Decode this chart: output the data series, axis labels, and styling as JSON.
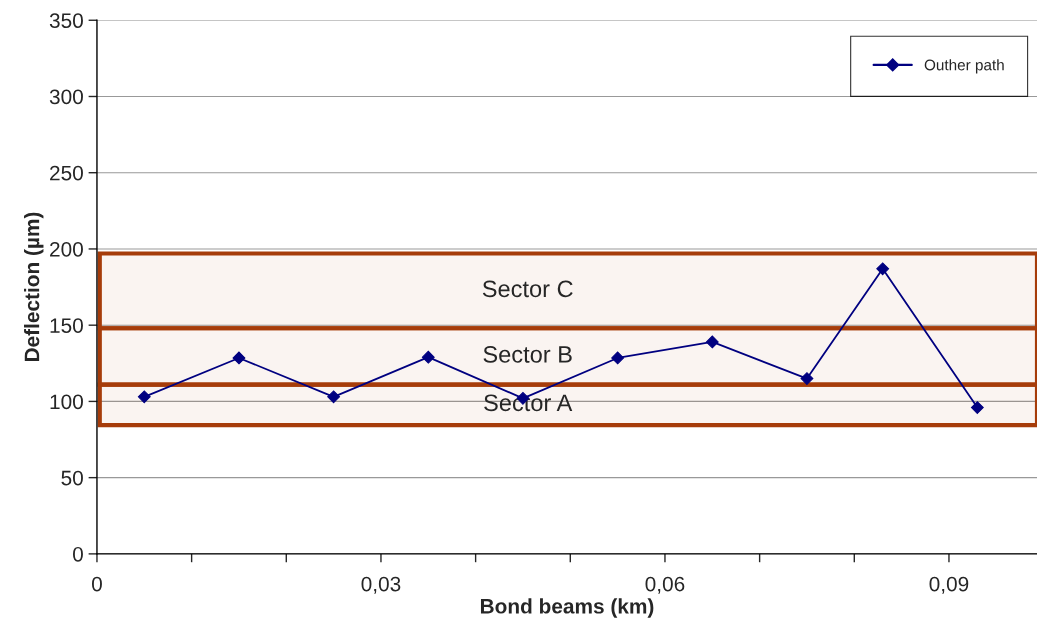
{
  "chart_data": {
    "type": "line",
    "xlabel": "Bond beams (km)",
    "ylabel": "Deflection (µm)",
    "x": [
      0.005,
      0.015,
      0.025,
      0.035,
      0.045,
      0.055,
      0.065,
      0.075,
      0.083,
      0.093
    ],
    "series": [
      {
        "name": "Outher path",
        "color": "#000080",
        "values": [
          103,
          128.5,
          103,
          129,
          102,
          128.5,
          139,
          115,
          187,
          96
        ]
      }
    ],
    "xlim": [
      0,
      0.0993
    ],
    "ylim": [
      0,
      350
    ],
    "xticks": [
      0,
      {
        "value": 0.01,
        "label": null
      },
      {
        "value": 0.02,
        "label": null
      },
      {
        "value": 0.03,
        "label": "0,03"
      },
      {
        "value": 0.04,
        "label": null
      },
      {
        "value": 0.05,
        "label": null
      },
      {
        "value": 0.06,
        "label": "0,06"
      },
      {
        "value": 0.07,
        "label": null
      },
      {
        "value": 0.08,
        "label": null
      },
      {
        "value": 0.09,
        "label": "0,09"
      }
    ],
    "yticks": [
      0,
      50,
      100,
      150,
      200,
      250,
      300,
      350
    ],
    "bands": [
      {
        "axis": "y",
        "from": 84.5,
        "to": 111,
        "label": "Sector A",
        "color": "#a63c0a"
      },
      {
        "axis": "y",
        "from": 111,
        "to": 148,
        "label": "Sector B",
        "color": "#a63c0a"
      },
      {
        "axis": "y",
        "from": 148,
        "to": 197,
        "label": "Sector C",
        "color": "#a63c0a"
      }
    ],
    "grid": "y",
    "legend": "top right",
    "marker": "diamond",
    "line_style": "solid"
  }
}
